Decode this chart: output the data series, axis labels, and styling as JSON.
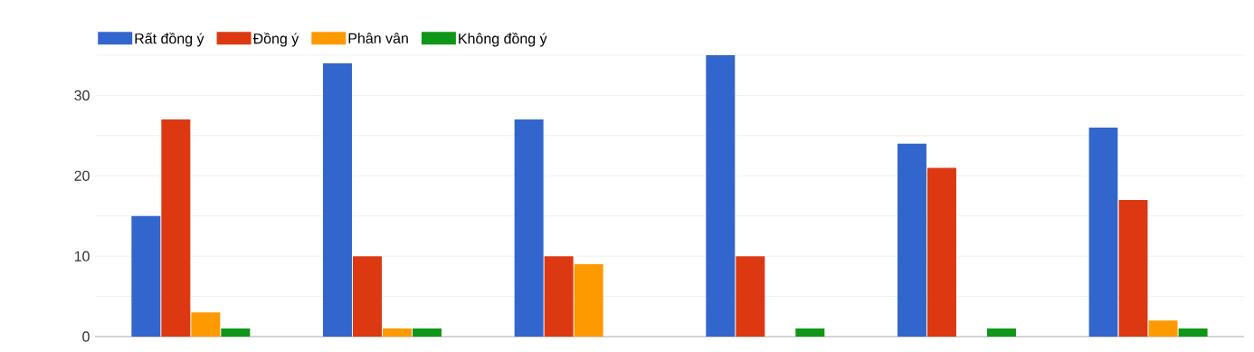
{
  "chart_data": {
    "type": "bar",
    "categories": [
      null,
      null,
      null,
      null,
      null,
      null
    ],
    "series": [
      {
        "name": "Rất đồng ý",
        "color": "#3366cc",
        "values": [
          15,
          34,
          27,
          35,
          24,
          26
        ]
      },
      {
        "name": "Đồng ý",
        "color": "#dc3912",
        "values": [
          27,
          10,
          10,
          10,
          21,
          17
        ]
      },
      {
        "name": "Phân vân",
        "color": "#ff9900",
        "values": [
          3,
          1,
          9,
          0,
          0,
          2
        ]
      },
      {
        "name": "Không đồng ý",
        "color": "#109618",
        "values": [
          1,
          1,
          0,
          1,
          1,
          1
        ]
      }
    ],
    "ylim": [
      0,
      35
    ],
    "yticks": [
      0,
      {
        "value": 5,
        "label": null
      },
      10,
      {
        "value": 15,
        "label": null
      },
      20,
      {
        "value": 25,
        "label": null
      },
      30,
      {
        "value": 35,
        "label": null
      }
    ],
    "grid": "y",
    "legend": "top left"
  }
}
